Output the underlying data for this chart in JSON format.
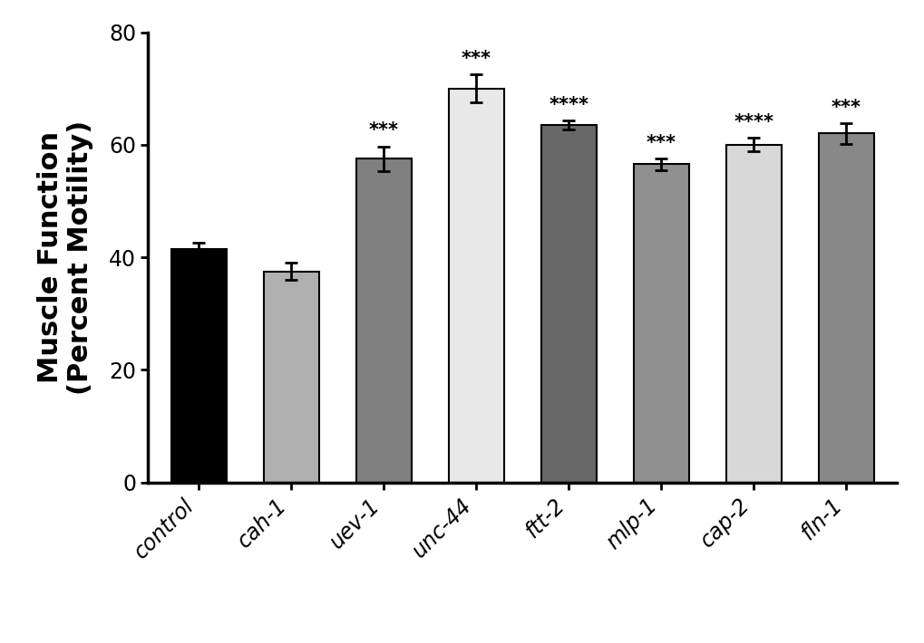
{
  "categories": [
    "control",
    "cah-1",
    "uev-1",
    "unc-44",
    "ftt-2",
    "mlp-1",
    "cap-2",
    "fln-1"
  ],
  "values": [
    41.5,
    37.5,
    57.5,
    70.0,
    63.5,
    56.5,
    60.0,
    62.0
  ],
  "errors": [
    1.0,
    1.5,
    2.2,
    2.5,
    0.8,
    1.0,
    1.2,
    1.8
  ],
  "bar_colors": [
    "#000000",
    "#b0b0b0",
    "#808080",
    "#e8e8e8",
    "#686868",
    "#909090",
    "#d8d8d8",
    "#888888"
  ],
  "significance": [
    "",
    "",
    "***",
    "***",
    "****",
    "***",
    "****",
    "***"
  ],
  "ylabel_line1": "Muscle Function",
  "ylabel_line2": "(Percent Motility)",
  "ylim": [
    0,
    80
  ],
  "yticks": [
    0,
    20,
    40,
    60,
    80
  ],
  "background_color": "#ffffff",
  "bar_width": 0.6,
  "ylabel_fontsize": 22,
  "tick_fontsize": 17,
  "sig_fontsize": 15,
  "xtick_rotation": 45
}
